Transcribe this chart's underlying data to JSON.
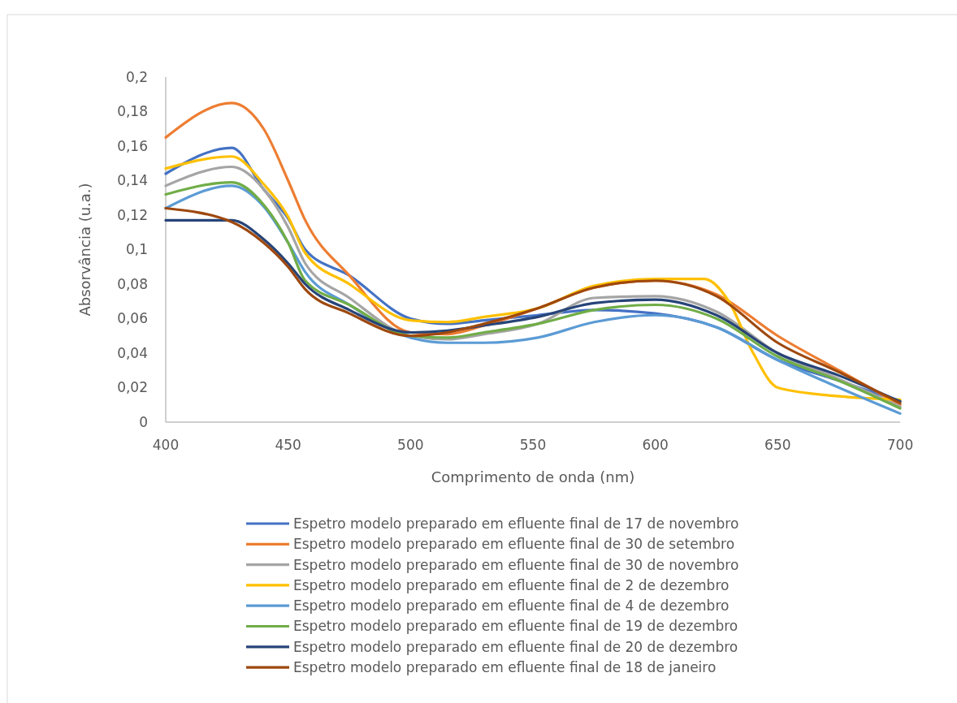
{
  "chart_data": {
    "type": "line",
    "xlabel": "Comprimento de onda (nm)",
    "ylabel": "Absorvância (u.a.)",
    "x": [
      400,
      427,
      440,
      450,
      457,
      475,
      500,
      515,
      530,
      552,
      575,
      600,
      625,
      650,
      675,
      700
    ],
    "xlim": [
      400,
      700
    ],
    "xticks": [
      400,
      450,
      500,
      550,
      600,
      650,
      700
    ],
    "ylim": [
      0,
      0.2
    ],
    "yticks": [
      {
        "value": 0,
        "label": "0"
      },
      {
        "value": 0.02,
        "label": "0,02"
      },
      {
        "value": 0.04,
        "label": "0,04"
      },
      {
        "value": 0.06,
        "label": "0,06"
      },
      {
        "value": 0.08,
        "label": "0,08"
      },
      {
        "value": 0.1,
        "label": "0,1"
      },
      {
        "value": 0.12,
        "label": "0,12"
      },
      {
        "value": 0.14,
        "label": "0,14"
      },
      {
        "value": 0.16,
        "label": "0,16"
      },
      {
        "value": 0.18,
        "label": "0,18"
      },
      {
        "value": 0.2,
        "label": "0,2"
      }
    ],
    "grid": false,
    "legend": "bottom",
    "marker": "none",
    "line_style": "solid",
    "series": [
      {
        "name": "Espetro modelo preparado em efluente final de 17 de novembro",
        "color": "#4472c4",
        "values": [
          0.144,
          0.159,
          0.135,
          0.118,
          0.1,
          0.085,
          0.06,
          0.057,
          0.059,
          0.062,
          0.065,
          0.063,
          0.055,
          0.036,
          0.024,
          0.012
        ]
      },
      {
        "name": "Espetro modelo preparado em efluente final de 30 de setembro",
        "color": "#ed7d31",
        "values": [
          0.165,
          0.185,
          0.17,
          0.14,
          0.117,
          0.085,
          0.052,
          0.051,
          0.056,
          0.066,
          0.078,
          0.082,
          0.074,
          0.05,
          0.03,
          0.01
        ]
      },
      {
        "name": "Espetro modelo preparado em efluente final de 30 de novembro",
        "color": "#a5a5a5",
        "values": [
          0.137,
          0.148,
          0.135,
          0.113,
          0.092,
          0.072,
          0.05,
          0.048,
          0.051,
          0.057,
          0.072,
          0.073,
          0.064,
          0.04,
          0.025,
          0.009
        ]
      },
      {
        "name": "Espetro modelo preparado em efluente final de 2 de dezembro",
        "color": "#ffc000",
        "x": [
          400,
          427,
          440,
          450,
          457,
          475,
          500,
          515,
          530,
          552,
          575,
          600,
          620,
          630,
          640,
          650,
          675,
          700
        ],
        "values": [
          0.147,
          0.154,
          0.138,
          0.119,
          0.098,
          0.08,
          0.059,
          0.058,
          0.061,
          0.066,
          0.079,
          0.083,
          0.083,
          0.07,
          0.04,
          0.02,
          0.015,
          0.013
        ]
      },
      {
        "name": "Espetro modelo preparado em efluente final de 4 de dezembro",
        "color": "#5b9bd5",
        "values": [
          0.124,
          0.137,
          0.125,
          0.104,
          0.087,
          0.068,
          0.049,
          0.046,
          0.046,
          0.049,
          0.058,
          0.062,
          0.055,
          0.036,
          0.02,
          0.005
        ]
      },
      {
        "name": "Espetro modelo preparado em efluente final de 19 de dezembro",
        "color": "#70ad47",
        "values": [
          0.132,
          0.139,
          0.126,
          0.104,
          0.082,
          0.068,
          0.05,
          0.049,
          0.052,
          0.057,
          0.065,
          0.068,
          0.06,
          0.038,
          0.024,
          0.008
        ]
      },
      {
        "name": "Espetro modelo preparado em efluente final de 20 de dezembro",
        "color": "#264478",
        "values": [
          0.117,
          0.117,
          0.106,
          0.092,
          0.08,
          0.065,
          0.052,
          0.053,
          0.056,
          0.061,
          0.069,
          0.071,
          0.062,
          0.04,
          0.027,
          0.012
        ]
      },
      {
        "name": "Espetro modelo preparado em efluente final de 18 de janeiro",
        "color": "#9e480e",
        "values": [
          0.124,
          0.116,
          0.104,
          0.09,
          0.077,
          0.063,
          0.05,
          0.052,
          0.057,
          0.066,
          0.078,
          0.082,
          0.073,
          0.046,
          0.029,
          0.011
        ]
      }
    ]
  }
}
